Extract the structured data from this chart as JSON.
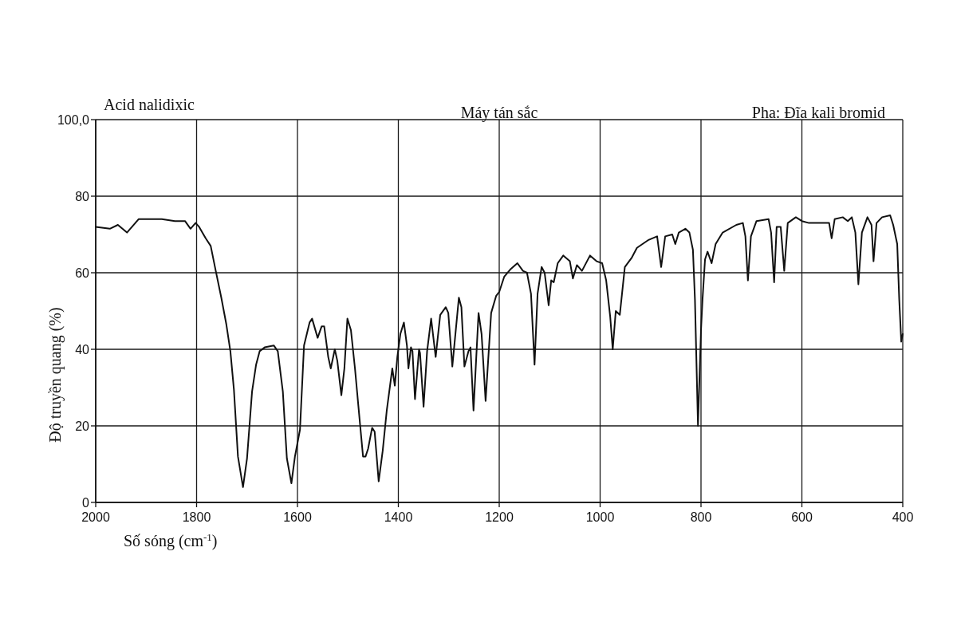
{
  "chart_data": {
    "type": "line",
    "title": "Acid nalidixic",
    "annotations": [
      "Máy tán sắc",
      "Pha: Đĩa kali bromid"
    ],
    "xlabel": "Số sóng (cm$^{-1}$)",
    "ylabel": "Độ truyền quang (%)",
    "xlim": [
      2000,
      400
    ],
    "xticks": [
      2000,
      1800,
      1600,
      1400,
      1200,
      1000,
      800,
      600,
      400
    ],
    "ylim": [
      0,
      100
    ],
    "yticks": [
      0,
      20,
      40,
      60,
      80,
      {
        "value": 100,
        "label": "100,0"
      }
    ],
    "grid": true,
    "color": "#111111",
    "x": [
      2000,
      1972,
      1956,
      1938,
      1928,
      1915,
      1894,
      1869,
      1843,
      1823,
      1812,
      1802,
      1795,
      1782,
      1772,
      1762,
      1751,
      1741,
      1733,
      1726,
      1718,
      1708,
      1700,
      1690,
      1682,
      1675,
      1665,
      1647,
      1639,
      1629,
      1621,
      1612,
      1605,
      1595,
      1587,
      1576,
      1571,
      1560,
      1552,
      1547,
      1539,
      1534,
      1526,
      1521,
      1513,
      1507,
      1501,
      1494,
      1486,
      1476,
      1470,
      1465,
      1460,
      1452,
      1447,
      1439,
      1431,
      1423,
      1412,
      1407,
      1402,
      1396,
      1389,
      1383,
      1380,
      1375,
      1372,
      1367,
      1359,
      1357,
      1350,
      1343,
      1335,
      1326,
      1317,
      1306,
      1301,
      1293,
      1280,
      1275,
      1269,
      1261,
      1257,
      1251,
      1241,
      1235,
      1227,
      1216,
      1206,
      1200,
      1190,
      1177,
      1164,
      1153,
      1145,
      1137,
      1130,
      1124,
      1116,
      1110,
      1102,
      1097,
      1092,
      1084,
      1073,
      1060,
      1054,
      1046,
      1036,
      1020,
      1007,
      996,
      988,
      980,
      975,
      969,
      961,
      951,
      937,
      927,
      905,
      887,
      879,
      871,
      857,
      851,
      844,
      831,
      823,
      816,
      812,
      806,
      800,
      797,
      792,
      787,
      779,
      771,
      757,
      730,
      717,
      712,
      707,
      701,
      690,
      666,
      661,
      655,
      650,
      642,
      635,
      628,
      612,
      600,
      586,
      559,
      546,
      541,
      535,
      519,
      509,
      501,
      494,
      488,
      481,
      470,
      462,
      458,
      452,
      441,
      425,
      419,
      411,
      407,
      403,
      400
    ],
    "values": [
      72,
      71.5,
      72.5,
      70.5,
      72,
      74,
      74,
      74,
      73.5,
      73.5,
      71.5,
      73,
      72,
      69,
      67,
      60.5,
      53.5,
      46.5,
      39.5,
      29.5,
      12,
      4,
      11.5,
      29,
      36,
      39.5,
      40.5,
      41,
      39.5,
      29,
      11.5,
      5,
      12,
      19,
      41,
      47,
      48,
      43,
      46,
      46,
      38,
      35,
      40,
      37,
      28,
      35,
      48,
      45,
      35,
      20.5,
      12,
      12,
      14,
      19.5,
      18.5,
      5.5,
      13.5,
      24,
      35,
      30.5,
      38,
      44,
      47,
      41,
      35,
      40.5,
      39.5,
      27,
      40,
      39,
      25,
      39.5,
      48,
      38,
      49,
      51,
      49.5,
      35.5,
      53.5,
      51,
      35.5,
      39.5,
      40.5,
      24,
      49.5,
      44,
      26.5,
      49.5,
      54,
      55,
      59,
      61,
      62.5,
      60.5,
      60,
      54.5,
      36,
      54.5,
      61.5,
      60,
      51.5,
      58,
      57.5,
      62.5,
      64.5,
      63,
      58.5,
      62,
      60.5,
      64.5,
      63,
      62.5,
      58,
      48.5,
      40,
      50,
      49,
      61.5,
      64,
      66.5,
      68.5,
      69.5,
      61.5,
      69.5,
      70,
      67.5,
      70.5,
      71.5,
      70.5,
      66,
      53,
      20,
      45,
      53,
      63.5,
      65.5,
      62.5,
      67.5,
      70.5,
      72.5,
      73,
      69.5,
      58,
      69.5,
      73.5,
      74,
      70.5,
      57.5,
      72,
      72,
      60.5,
      73,
      74.5,
      73.5,
      73,
      73,
      73,
      69,
      74,
      74.5,
      73.5,
      74.5,
      70.5,
      57,
      70.5,
      74.5,
      72.5,
      63,
      73,
      74.5,
      75,
      72.5,
      67.5,
      53,
      42,
      44
    ]
  }
}
